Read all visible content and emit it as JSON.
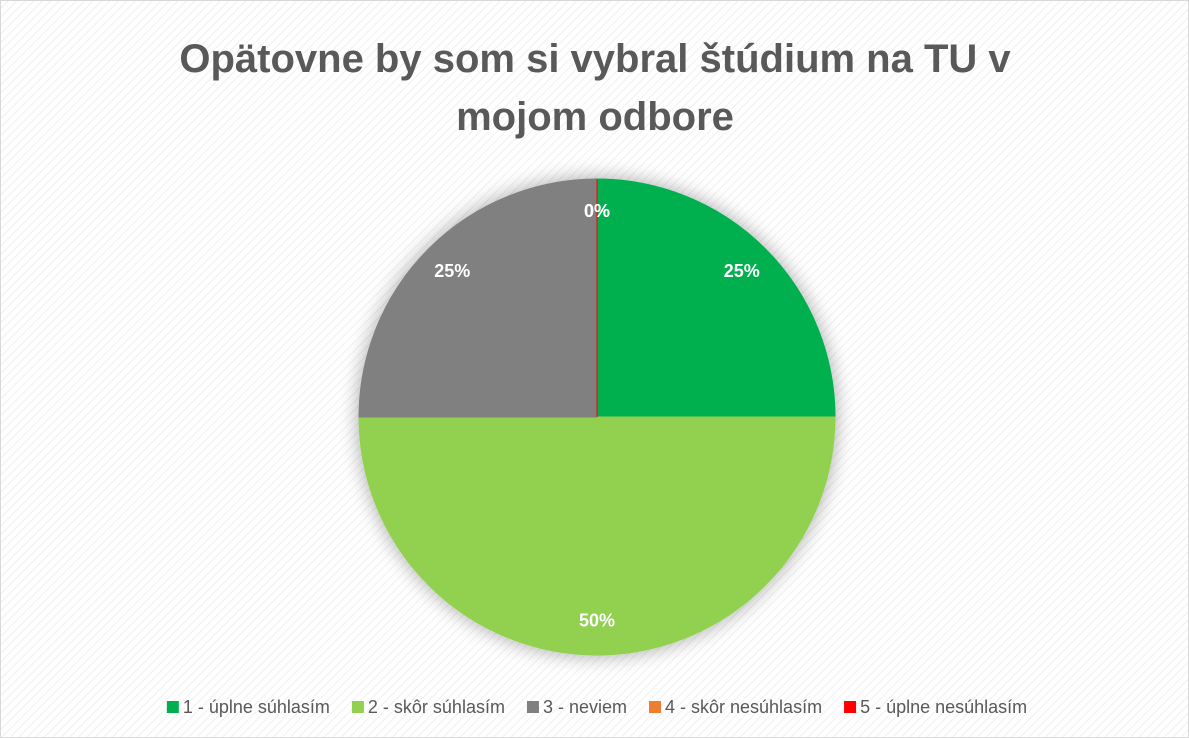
{
  "chart_data": {
    "type": "pie",
    "title": "Opätovne by som si vybral štúdium na TU v mojom odbore",
    "categories": [
      "1 - úplne súhlasím",
      "2 - skôr súhlasím",
      "3 - neviem",
      "4 - skôr nesúhlasím",
      "5 - úplne nesúhlasím"
    ],
    "values": [
      25,
      50,
      25,
      0,
      0
    ],
    "value_labels": [
      "25%",
      "50%",
      "25%",
      "0%",
      "0%"
    ],
    "colors": [
      "#00b050",
      "#92d050",
      "#808080",
      "#ed7d31",
      "#ff0000"
    ],
    "legend": "bottom"
  }
}
